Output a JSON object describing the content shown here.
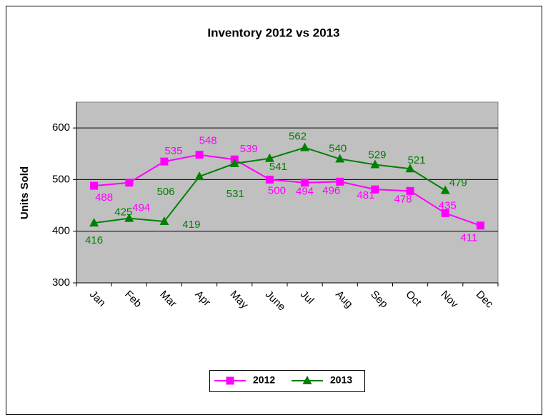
{
  "chart_data": {
    "type": "line",
    "title": "Inventory 2012 vs 2013",
    "y_label": "Units Sold",
    "categories": [
      "Jan",
      "Feb",
      "Mar",
      "Apr",
      "May",
      "June",
      "Jul",
      "Aug",
      "Sep",
      "Oct",
      "Nov",
      "Dec"
    ],
    "series": [
      {
        "name": "2012",
        "color": "#ff00ff",
        "marker": "square",
        "values": [
          488,
          494,
          535,
          548,
          539,
          500,
          494,
          496,
          481,
          478,
          435,
          411
        ]
      },
      {
        "name": "2013",
        "color": "#008000",
        "marker": "triangle",
        "values": [
          416,
          425,
          419,
          506,
          531,
          541,
          562,
          540,
          529,
          521,
          479,
          null
        ]
      }
    ],
    "ylim": [
      300,
      650
    ],
    "yticks": [
      300,
      400,
      500,
      600
    ],
    "grid": true,
    "legend": "bottom"
  }
}
